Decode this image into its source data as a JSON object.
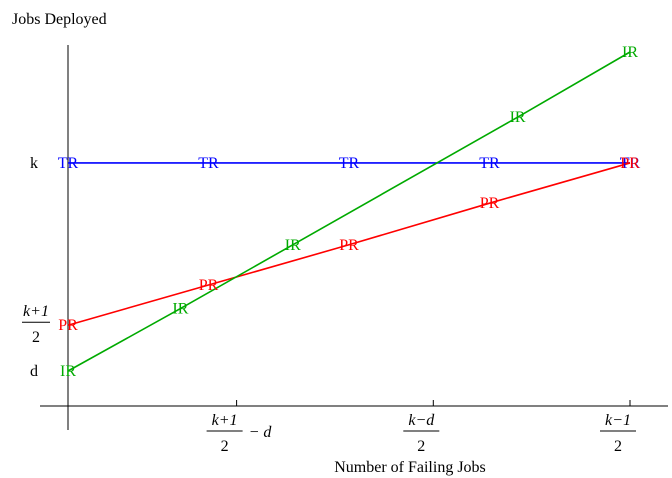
{
  "chart_data": {
    "type": "line",
    "ylabel": "Jobs Deployed",
    "xlabel": "Number of Failing Jobs",
    "x_ticks": [
      {
        "x": 1.2,
        "num": "k+1",
        "den": "2",
        "suffix": "− d"
      },
      {
        "x": 2.6,
        "num": "k−d",
        "den": "2",
        "suffix": ""
      },
      {
        "x": 4.0,
        "num": "k−1",
        "den": "2",
        "suffix": ""
      }
    ],
    "y_ticks": [
      {
        "y": 0.2,
        "text": "d"
      },
      {
        "y": 0.53,
        "num": "k+1",
        "den": "2"
      },
      {
        "y": 1.7,
        "text": "k"
      }
    ],
    "xlim": [
      -0.2,
      4.05
    ],
    "ylim": [
      -0.5,
      2.15
    ],
    "series": [
      {
        "name": "TR",
        "color": "#0000ff",
        "points": [
          [
            0,
            1.7
          ],
          [
            1.0,
            1.7
          ],
          [
            2.0,
            1.7
          ],
          [
            3.0,
            1.7
          ],
          [
            4.0,
            1.7
          ]
        ]
      },
      {
        "name": "PR",
        "color": "#ff0000",
        "points": [
          [
            0,
            0.53
          ],
          [
            1.0,
            0.82
          ],
          [
            2.0,
            1.11
          ],
          [
            3.0,
            1.41
          ],
          [
            4.0,
            1.7
          ]
        ]
      },
      {
        "name": "IR",
        "color": "#00aa00",
        "points": [
          [
            0,
            0.2
          ],
          [
            0.8,
            0.65
          ],
          [
            1.6,
            1.11
          ],
          [
            3.2,
            2.03
          ],
          [
            4.0,
            2.5
          ]
        ]
      }
    ]
  }
}
